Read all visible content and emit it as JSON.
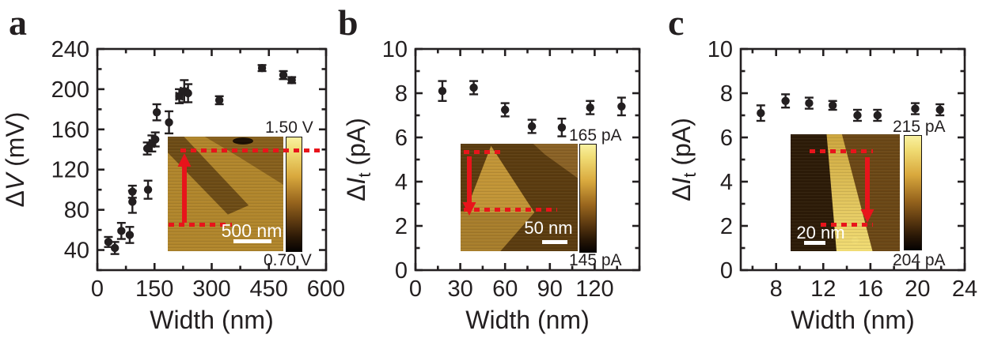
{
  "figure": {
    "background": "#ffffff",
    "axis_color": "#231f20",
    "accent_red": "#e8141b"
  },
  "panels": [
    {
      "letter": "a",
      "xlabel": "Width (nm)",
      "ylabel_parts": [
        {
          "t": "Δ"
        },
        {
          "t": "V",
          "italic": true
        },
        {
          "t": " (mV)"
        }
      ],
      "inset": {
        "scalebar_label": "500 nm",
        "colorbar_top_label": "1.50 V",
        "colorbar_bottom_label": "0.70 V",
        "arrow_direction": "up"
      }
    },
    {
      "letter": "b",
      "xlabel": "Width (nm)",
      "ylabel_parts": [
        {
          "t": "Δ"
        },
        {
          "t": "I",
          "italic": true
        },
        {
          "t": "t",
          "sub": true
        },
        {
          "t": " (pA)"
        }
      ],
      "inset": {
        "scalebar_label": "50 nm",
        "colorbar_top_label": "165 pA",
        "colorbar_bottom_label": "145 pA",
        "arrow_direction": "down"
      }
    },
    {
      "letter": "c",
      "xlabel": "Width (nm)",
      "ylabel_parts": [
        {
          "t": "Δ"
        },
        {
          "t": "I",
          "italic": true
        },
        {
          "t": "t",
          "sub": true
        },
        {
          "t": " (pA)"
        }
      ],
      "inset": {
        "scalebar_label": "20 nm",
        "colorbar_top_label": "215 pA",
        "colorbar_bottom_label": "204 pA",
        "arrow_direction": "down"
      }
    }
  ],
  "chart_data": [
    {
      "type": "scatter",
      "title": "",
      "xlabel": "Width (nm)",
      "ylabel": "ΔV (mV)",
      "xlim": [
        0,
        600
      ],
      "ylim": [
        20,
        240
      ],
      "x_major_ticks": [
        0,
        150,
        300,
        450,
        600
      ],
      "x_minor_step": 75,
      "y_major_ticks": [
        40,
        80,
        120,
        160,
        200,
        240
      ],
      "y_minor_step": 20,
      "grid": false,
      "legend": false,
      "points": [
        {
          "x": 29,
          "y": 48,
          "yerr": 5
        },
        {
          "x": 46,
          "y": 42,
          "yerr": 6
        },
        {
          "x": 63,
          "y": 59,
          "yerr": 8
        },
        {
          "x": 85,
          "y": 55,
          "yerr": 8
        },
        {
          "x": 92,
          "y": 98,
          "yerr": 6
        },
        {
          "x": 92,
          "y": 88,
          "yerr": 11
        },
        {
          "x": 133,
          "y": 100,
          "yerr": 9
        },
        {
          "x": 131,
          "y": 141,
          "yerr": 6
        },
        {
          "x": 143,
          "y": 146,
          "yerr": 8,
          "xerr": 6
        },
        {
          "x": 152,
          "y": 150,
          "yerr": 7
        },
        {
          "x": 156,
          "y": 177,
          "yerr": 8
        },
        {
          "x": 188,
          "y": 167,
          "yerr": 11
        },
        {
          "x": 215,
          "y": 193,
          "yerr": 7,
          "xerr": 8
        },
        {
          "x": 228,
          "y": 198,
          "yerr": 11,
          "xerr": 9
        },
        {
          "x": 238,
          "y": 196,
          "yerr": 9
        },
        {
          "x": 320,
          "y": 189,
          "yerr": 4
        },
        {
          "x": 432,
          "y": 221,
          "yerr": 3
        },
        {
          "x": 488,
          "y": 214,
          "yerr": 4
        },
        {
          "x": 510,
          "y": 209,
          "yerr": 3
        }
      ]
    },
    {
      "type": "scatter",
      "title": "",
      "xlabel": "Width (nm)",
      "ylabel": "ΔIt (pA)",
      "xlim": [
        0,
        150
      ],
      "ylim": [
        0,
        10
      ],
      "x_major_ticks": [
        0,
        30,
        60,
        90,
        120
      ],
      "x_minor_step": 15,
      "y_major_ticks": [
        0,
        2,
        4,
        6,
        8,
        10
      ],
      "y_minor_step": 1,
      "grid": false,
      "legend": false,
      "points": [
        {
          "x": 18,
          "y": 8.1,
          "yerr": 0.45
        },
        {
          "x": 39,
          "y": 8.25,
          "yerr": 0.3
        },
        {
          "x": 60,
          "y": 7.25,
          "yerr": 0.3
        },
        {
          "x": 78,
          "y": 6.5,
          "yerr": 0.3
        },
        {
          "x": 98,
          "y": 6.45,
          "yerr": 0.4
        },
        {
          "x": 117,
          "y": 7.35,
          "yerr": 0.3
        },
        {
          "x": 138,
          "y": 7.4,
          "yerr": 0.4
        }
      ]
    },
    {
      "type": "scatter",
      "title": "",
      "xlabel": "Width (nm)",
      "ylabel": "ΔIt (pA)",
      "xlim": [
        5,
        24
      ],
      "ylim": [
        0,
        10
      ],
      "x_major_ticks": [
        8,
        12,
        16,
        20,
        24
      ],
      "x_minor_step": 2,
      "y_major_ticks": [
        0,
        2,
        4,
        6,
        8,
        10
      ],
      "y_minor_step": 1,
      "grid": false,
      "legend": false,
      "points": [
        {
          "x": 6.7,
          "y": 7.1,
          "yerr": 0.35
        },
        {
          "x": 8.8,
          "y": 7.65,
          "yerr": 0.3
        },
        {
          "x": 10.8,
          "y": 7.55,
          "yerr": 0.25
        },
        {
          "x": 12.8,
          "y": 7.45,
          "yerr": 0.2
        },
        {
          "x": 14.9,
          "y": 7.0,
          "yerr": 0.25
        },
        {
          "x": 16.6,
          "y": 7.0,
          "yerr": 0.25
        },
        {
          "x": 19.8,
          "y": 7.3,
          "yerr": 0.25
        },
        {
          "x": 21.9,
          "y": 7.25,
          "yerr": 0.25
        }
      ]
    }
  ]
}
